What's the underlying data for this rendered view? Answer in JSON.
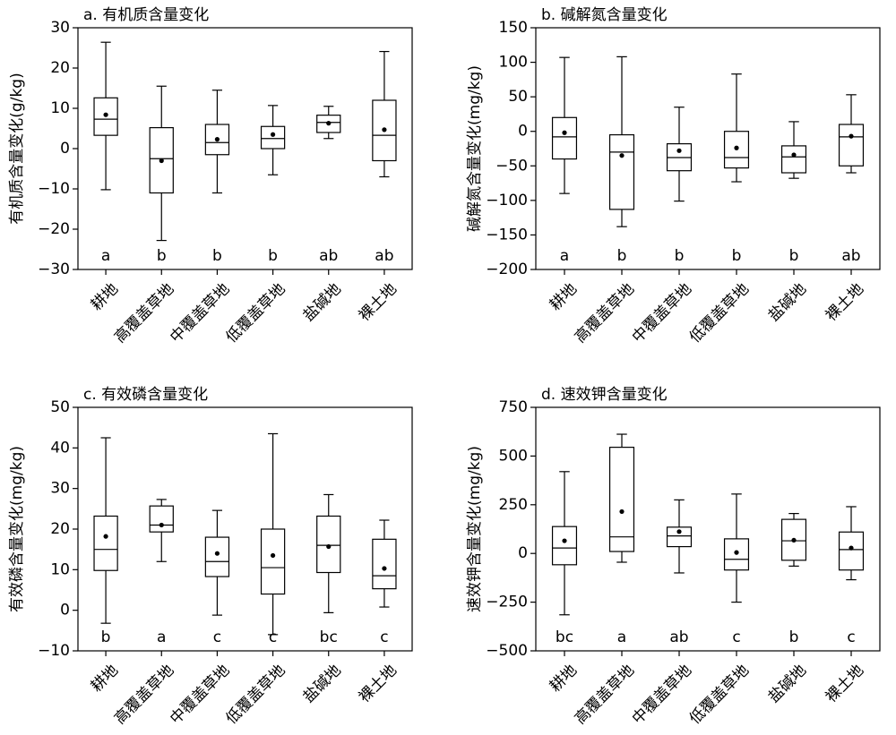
{
  "chart_data": [
    {
      "type": "box",
      "title": "a. 有机质含量变化",
      "ylabel": "有机质含量变化(g/kg)",
      "ylim": [
        -30,
        30
      ],
      "yticks": [
        -30,
        -20,
        -10,
        0,
        10,
        20,
        30
      ],
      "categories": [
        "耕地",
        "高覆盖草地",
        "中覆盖草地",
        "低覆盖草地",
        "盐碱地",
        "裸土地"
      ],
      "boxes": [
        {
          "min": -10.2,
          "q1": 3.3,
          "median": 7.3,
          "q3": 12.6,
          "max": 26.4,
          "mean": 8.4,
          "sig": "a"
        },
        {
          "min": -22.8,
          "q1": -11.0,
          "median": -2.5,
          "q3": 5.2,
          "max": 15.5,
          "mean": -3.0,
          "sig": "b"
        },
        {
          "min": -11.0,
          "q1": -1.5,
          "median": 1.5,
          "q3": 6.0,
          "max": 14.5,
          "mean": 2.3,
          "sig": "b"
        },
        {
          "min": -6.5,
          "q1": 0.0,
          "median": 2.5,
          "q3": 5.5,
          "max": 10.7,
          "mean": 3.5,
          "sig": "b"
        },
        {
          "min": 2.5,
          "q1": 4.0,
          "median": 6.5,
          "q3": 8.3,
          "max": 10.5,
          "mean": 6.3,
          "sig": "ab"
        },
        {
          "min": -7.0,
          "q1": -3.0,
          "median": 3.3,
          "q3": 12.0,
          "max": 24.1,
          "mean": 4.7,
          "sig": "ab"
        }
      ]
    },
    {
      "type": "box",
      "title": "b. 碱解氮含量变化",
      "ylabel": "碱解氮含量变化(mg/kg)",
      "ylim": [
        -200,
        150
      ],
      "yticks": [
        -200,
        -150,
        -100,
        -50,
        0,
        50,
        100,
        150
      ],
      "categories": [
        "耕地",
        "高覆盖草地",
        "中覆盖草地",
        "低覆盖草地",
        "盐碱地",
        "裸土地"
      ],
      "boxes": [
        {
          "min": -90,
          "q1": -40,
          "median": -8,
          "q3": 20,
          "max": 107,
          "mean": -2,
          "sig": "a"
        },
        {
          "min": -138,
          "q1": -113,
          "median": -30,
          "q3": -5,
          "max": 108,
          "mean": -35,
          "sig": "b"
        },
        {
          "min": -101,
          "q1": -57,
          "median": -38,
          "q3": -18,
          "max": 35,
          "mean": -28,
          "sig": "b"
        },
        {
          "min": -73,
          "q1": -53,
          "median": -38,
          "q3": 0,
          "max": 83,
          "mean": -24,
          "sig": "b"
        },
        {
          "min": -68,
          "q1": -60,
          "median": -37,
          "q3": -21,
          "max": 14,
          "mean": -34,
          "sig": "b"
        },
        {
          "min": -60,
          "q1": -50,
          "median": -8,
          "q3": 10,
          "max": 53,
          "mean": -7,
          "sig": "ab"
        }
      ]
    },
    {
      "type": "box",
      "title": "c. 有效磷含量变化",
      "ylabel": "有效磷含量变化(mg/kg)",
      "ylim": [
        -10,
        50
      ],
      "yticks": [
        -10,
        0,
        10,
        20,
        30,
        40,
        50
      ],
      "categories": [
        "耕地",
        "高覆盖草地",
        "中覆盖草地",
        "低覆盖草地",
        "盐碱地",
        "裸土地"
      ],
      "boxes": [
        {
          "min": -3.2,
          "q1": 9.8,
          "median": 15.0,
          "q3": 23.2,
          "max": 42.5,
          "mean": 18.2,
          "sig": "b"
        },
        {
          "min": 12.0,
          "q1": 19.3,
          "median": 21.0,
          "q3": 25.7,
          "max": 27.3,
          "mean": 21.0,
          "sig": "a"
        },
        {
          "min": -1.2,
          "q1": 8.3,
          "median": 12.0,
          "q3": 18.0,
          "max": 24.6,
          "mean": 14.0,
          "sig": "c"
        },
        {
          "min": -6.0,
          "q1": 4.0,
          "median": 10.5,
          "q3": 20.0,
          "max": 43.5,
          "mean": 13.5,
          "sig": "c"
        },
        {
          "min": -0.6,
          "q1": 9.3,
          "median": 16.0,
          "q3": 23.2,
          "max": 28.5,
          "mean": 15.7,
          "sig": "bc"
        },
        {
          "min": 0.8,
          "q1": 5.3,
          "median": 8.5,
          "q3": 17.5,
          "max": 22.2,
          "mean": 10.3,
          "sig": "c"
        }
      ]
    },
    {
      "type": "box",
      "title": "d. 速效钾含量变化",
      "ylabel": "速效钾含量变化(mg/kg)",
      "ylim": [
        -500,
        750
      ],
      "yticks": [
        -500,
        -250,
        0,
        250,
        500,
        750
      ],
      "categories": [
        "耕地",
        "高覆盖草地",
        "中覆盖草地",
        "低覆盖草地",
        "盐碱地",
        "裸土地"
      ],
      "boxes": [
        {
          "min": -315,
          "q1": -58,
          "median": 28,
          "q3": 138,
          "max": 420,
          "mean": 65,
          "sig": "bc"
        },
        {
          "min": -45,
          "q1": 10,
          "median": 85,
          "q3": 545,
          "max": 612,
          "mean": 215,
          "sig": "a"
        },
        {
          "min": -100,
          "q1": 35,
          "median": 90,
          "q3": 135,
          "max": 275,
          "mean": 112,
          "sig": "ab"
        },
        {
          "min": -250,
          "q1": -85,
          "median": -30,
          "q3": 75,
          "max": 305,
          "mean": 5,
          "sig": "c"
        },
        {
          "min": -65,
          "q1": -35,
          "median": 65,
          "q3": 175,
          "max": 205,
          "mean": 68,
          "sig": "b"
        },
        {
          "min": -135,
          "q1": -85,
          "median": 20,
          "q3": 110,
          "max": 240,
          "mean": 28,
          "sig": "c"
        }
      ]
    }
  ]
}
